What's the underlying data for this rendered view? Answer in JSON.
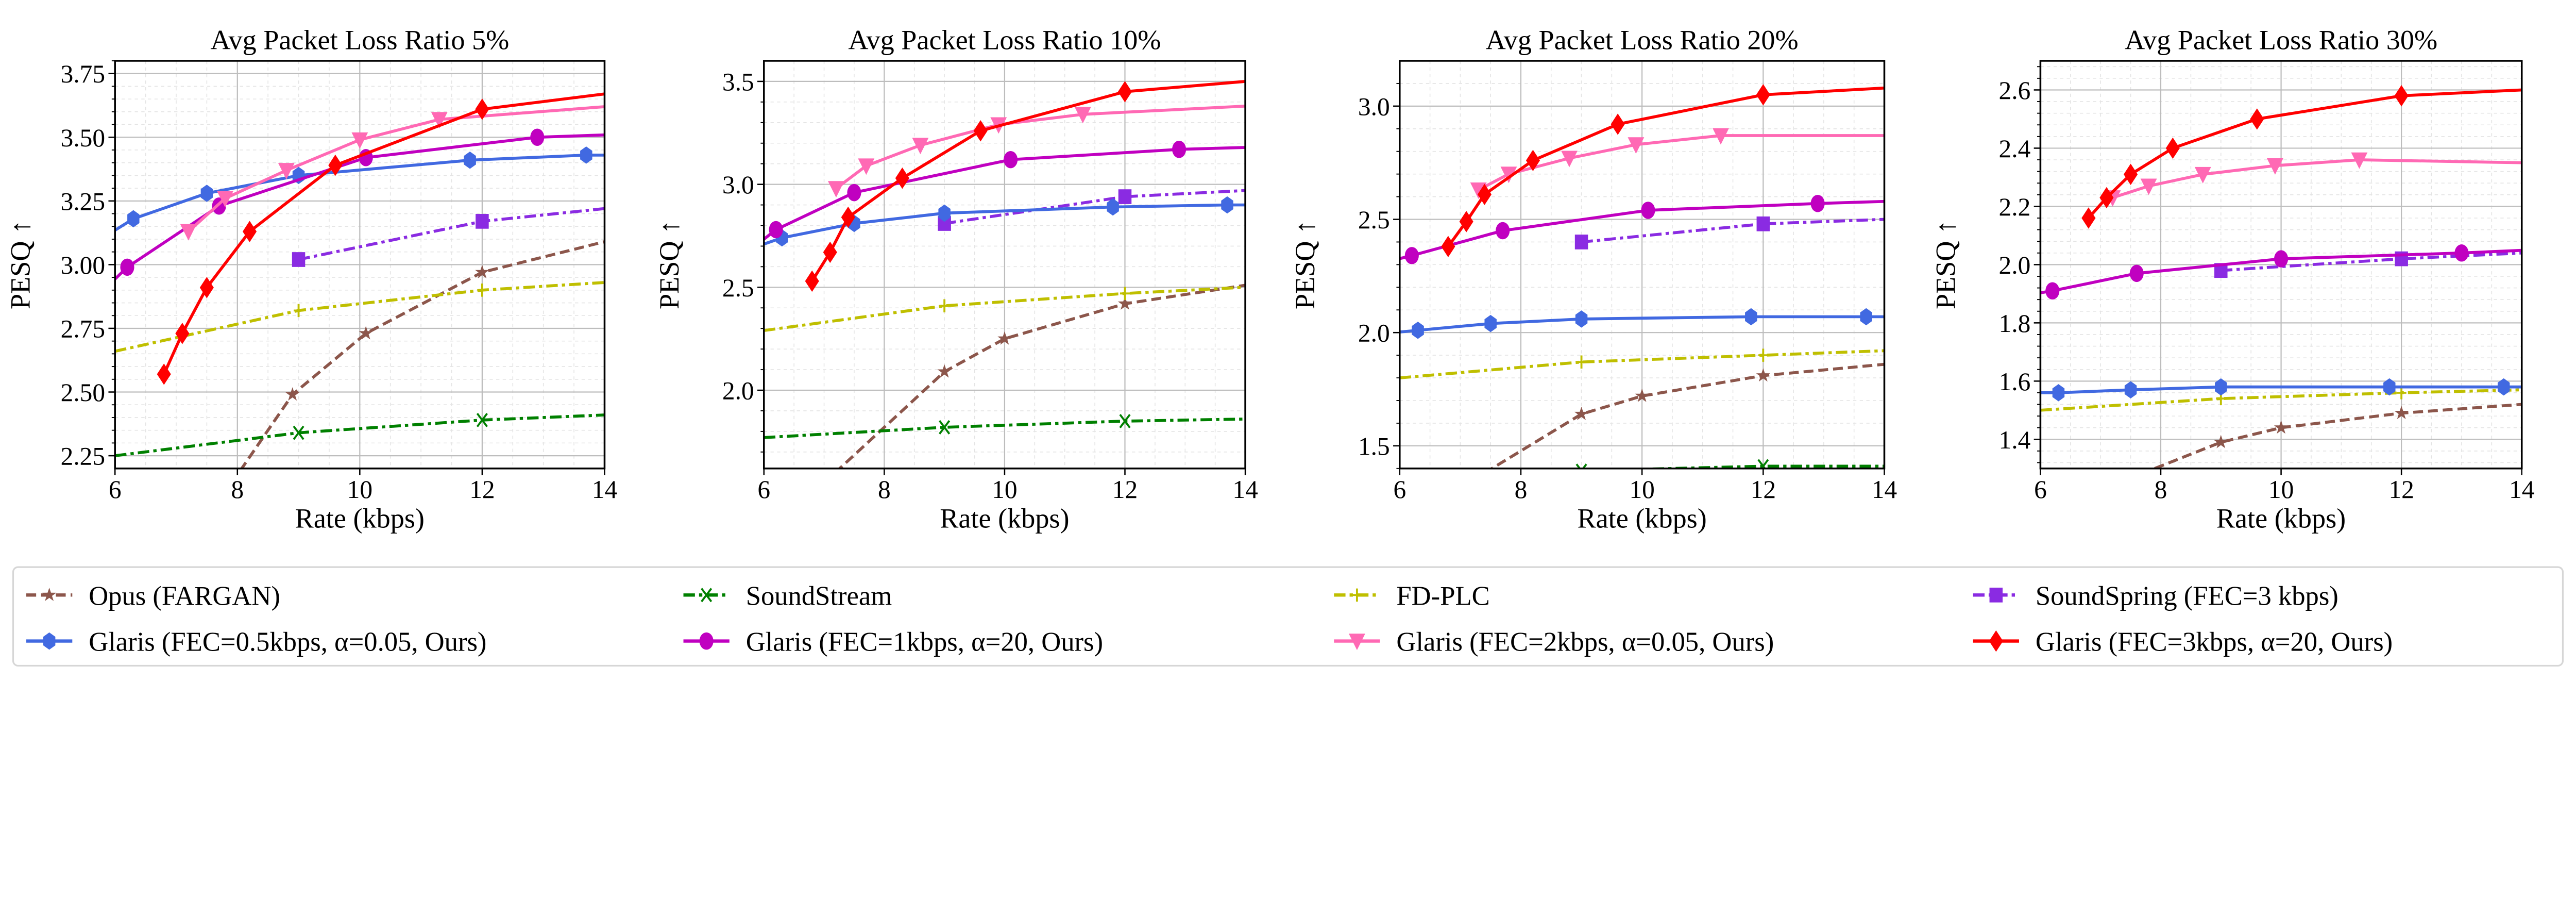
{
  "chart_data": [
    {
      "type": "line",
      "title": "Avg Packet Loss Ratio 5%",
      "xlabel": "Rate (kbps)",
      "ylabel": "PESQ ↑",
      "xlim": [
        6,
        14
      ],
      "ylim": [
        2.2,
        3.8
      ],
      "xticks": [
        6,
        8,
        10,
        12,
        14
      ],
      "yticks": [
        2.25,
        2.5,
        2.75,
        3.0,
        3.25,
        3.5,
        3.75
      ],
      "ytick_decimals": 2,
      "grid": true,
      "series": [
        {
          "key": "opus",
          "x": [
            7.5,
            8.9,
            10.1,
            12,
            14
          ],
          "y": [
            2.0,
            2.49,
            2.73,
            2.97,
            3.09
          ]
        },
        {
          "key": "soundstream",
          "x": [
            6,
            9,
            12,
            14
          ],
          "y": [
            2.25,
            2.34,
            2.39,
            2.41
          ]
        },
        {
          "key": "fdplc",
          "x": [
            6,
            9,
            12,
            14
          ],
          "y": [
            2.66,
            2.82,
            2.9,
            2.93
          ]
        },
        {
          "key": "soundspring",
          "x": [
            9,
            12,
            14
          ],
          "y": [
            3.02,
            3.17,
            3.22
          ]
        },
        {
          "key": "glaris05",
          "x": [
            5.9,
            6.3,
            7.5,
            9,
            11.8,
            13.7,
            14.1
          ],
          "y": [
            3.12,
            3.18,
            3.28,
            3.35,
            3.41,
            3.43,
            3.43
          ]
        },
        {
          "key": "glaris1",
          "x": [
            5.9,
            6.2,
            7.7,
            10.1,
            12.9,
            14.1
          ],
          "y": [
            2.92,
            2.99,
            3.23,
            3.42,
            3.5,
            3.51
          ]
        },
        {
          "key": "glaris2",
          "x": [
            7.2,
            7.8,
            8.8,
            10,
            11.3,
            14
          ],
          "y": [
            3.13,
            3.26,
            3.37,
            3.49,
            3.57,
            3.62
          ]
        },
        {
          "key": "glaris3",
          "x": [
            6.8,
            7.1,
            7.5,
            8.2,
            9.6,
            12,
            14
          ],
          "y": [
            2.57,
            2.73,
            2.91,
            3.13,
            3.39,
            3.61,
            3.67
          ]
        }
      ]
    },
    {
      "type": "line",
      "title": "Avg Packet Loss Ratio 10%",
      "xlabel": "Rate (kbps)",
      "ylabel": "PESQ ↑",
      "xlim": [
        6,
        14
      ],
      "ylim": [
        1.62,
        3.6
      ],
      "xticks": [
        6,
        8,
        10,
        12,
        14
      ],
      "yticks": [
        2.0,
        2.5,
        3.0,
        3.5
      ],
      "ytick_decimals": 1,
      "grid": true,
      "series": [
        {
          "key": "opus",
          "x": [
            7.0,
            9,
            10,
            12,
            14
          ],
          "y": [
            1.55,
            2.09,
            2.25,
            2.42,
            2.51
          ]
        },
        {
          "key": "soundstream",
          "x": [
            6,
            9,
            12,
            14
          ],
          "y": [
            1.77,
            1.82,
            1.85,
            1.86
          ]
        },
        {
          "key": "fdplc",
          "x": [
            6,
            9,
            12,
            14
          ],
          "y": [
            2.29,
            2.41,
            2.47,
            2.5
          ]
        },
        {
          "key": "soundspring",
          "x": [
            9,
            12,
            14
          ],
          "y": [
            2.81,
            2.94,
            2.97
          ]
        },
        {
          "key": "glaris05",
          "x": [
            5.9,
            6.3,
            7.5,
            9,
            11.8,
            13.7,
            14.1
          ],
          "y": [
            2.7,
            2.74,
            2.81,
            2.86,
            2.89,
            2.9,
            2.9
          ]
        },
        {
          "key": "glaris1",
          "x": [
            5.9,
            6.2,
            7.5,
            10.1,
            12.9,
            14.1
          ],
          "y": [
            2.71,
            2.78,
            2.96,
            3.12,
            3.17,
            3.18
          ]
        },
        {
          "key": "glaris2",
          "x": [
            7.2,
            7.7,
            8.6,
            9.9,
            11.3,
            14
          ],
          "y": [
            2.98,
            3.09,
            3.19,
            3.29,
            3.34,
            3.38
          ]
        },
        {
          "key": "glaris3",
          "x": [
            6.8,
            7.1,
            7.4,
            8.3,
            9.6,
            12,
            14
          ],
          "y": [
            2.53,
            2.67,
            2.84,
            3.03,
            3.26,
            3.45,
            3.5
          ]
        }
      ]
    },
    {
      "type": "line",
      "title": "Avg Packet Loss Ratio 20%",
      "xlabel": "Rate (kbps)",
      "ylabel": "PESQ ↑",
      "xlim": [
        6,
        14
      ],
      "ylim": [
        1.4,
        3.2
      ],
      "xticks": [
        6,
        8,
        10,
        12,
        14
      ],
      "yticks": [
        1.5,
        2.0,
        2.5,
        3.0
      ],
      "ytick_decimals": 1,
      "grid": true,
      "series": [
        {
          "key": "opus",
          "x": [
            7.4,
            9,
            10,
            12,
            14
          ],
          "y": [
            1.38,
            1.64,
            1.72,
            1.81,
            1.86
          ]
        },
        {
          "key": "soundstream",
          "x": [
            6,
            9,
            12,
            14
          ],
          "y": [
            1.37,
            1.39,
            1.41,
            1.41
          ]
        },
        {
          "key": "fdplc",
          "x": [
            6,
            9,
            12,
            14
          ],
          "y": [
            1.8,
            1.87,
            1.9,
            1.92
          ]
        },
        {
          "key": "soundspring",
          "x": [
            9,
            12,
            14
          ],
          "y": [
            2.4,
            2.48,
            2.5
          ]
        },
        {
          "key": "glaris05",
          "x": [
            5.9,
            6.3,
            7.5,
            9,
            11.8,
            13.7,
            14.1
          ],
          "y": [
            2.0,
            2.01,
            2.04,
            2.06,
            2.07,
            2.07,
            2.07
          ]
        },
        {
          "key": "glaris1",
          "x": [
            5.9,
            6.2,
            7.7,
            10.1,
            12.9,
            14.1
          ],
          "y": [
            2.32,
            2.34,
            2.45,
            2.54,
            2.57,
            2.58
          ]
        },
        {
          "key": "glaris2",
          "x": [
            7.3,
            7.8,
            8.8,
            9.9,
            11.3,
            14
          ],
          "y": [
            2.63,
            2.7,
            2.77,
            2.83,
            2.87,
            2.87
          ]
        },
        {
          "key": "glaris3",
          "x": [
            6.8,
            7.1,
            7.4,
            8.2,
            9.6,
            12,
            14
          ],
          "y": [
            2.38,
            2.49,
            2.61,
            2.76,
            2.92,
            3.05,
            3.08
          ]
        }
      ]
    },
    {
      "type": "line",
      "title": "Avg Packet Loss Ratio 30%",
      "xlabel": "Rate (kbps)",
      "ylabel": "PESQ ↑",
      "xlim": [
        6,
        14
      ],
      "ylim": [
        1.3,
        2.7
      ],
      "xticks": [
        6,
        8,
        10,
        12,
        14
      ],
      "yticks": [
        1.4,
        1.6,
        1.8,
        2.0,
        2.2,
        2.4,
        2.6
      ],
      "ytick_decimals": 1,
      "grid": true,
      "series": [
        {
          "key": "opus",
          "x": [
            7.9,
            9,
            10,
            12,
            14
          ],
          "y": [
            1.3,
            1.39,
            1.44,
            1.49,
            1.52
          ]
        },
        {
          "key": "fdplc",
          "x": [
            6,
            9,
            12,
            14
          ],
          "y": [
            1.5,
            1.54,
            1.56,
            1.57
          ]
        },
        {
          "key": "soundspring",
          "x": [
            9,
            12,
            14
          ],
          "y": [
            1.98,
            2.02,
            2.04
          ]
        },
        {
          "key": "glaris05",
          "x": [
            5.9,
            6.3,
            7.5,
            9,
            11.8,
            13.7,
            14.1
          ],
          "y": [
            1.56,
            1.56,
            1.57,
            1.58,
            1.58,
            1.58,
            1.58
          ]
        },
        {
          "key": "glaris1",
          "x": [
            5.9,
            6.2,
            7.6,
            10,
            13,
            14.1
          ],
          "y": [
            1.9,
            1.91,
            1.97,
            2.02,
            2.04,
            2.05
          ]
        },
        {
          "key": "glaris2",
          "x": [
            7.2,
            7.8,
            8.7,
            9.9,
            11.3,
            14
          ],
          "y": [
            2.23,
            2.27,
            2.31,
            2.34,
            2.36,
            2.35
          ]
        },
        {
          "key": "glaris3",
          "x": [
            6.8,
            7.1,
            7.5,
            8.2,
            9.6,
            12,
            14
          ],
          "y": [
            2.16,
            2.23,
            2.31,
            2.4,
            2.5,
            2.58,
            2.6
          ]
        }
      ]
    }
  ],
  "legend": {
    "placement": "bottom",
    "entries": [
      {
        "key": "opus",
        "label": "Opus (FARGAN)",
        "color": "#8c564b",
        "dash": "dashed",
        "marker": "star"
      },
      {
        "key": "soundstream",
        "label": "SoundStream",
        "color": "#008000",
        "dash": "dashdot",
        "marker": "x"
      },
      {
        "key": "fdplc",
        "label": "FD-PLC",
        "color": "#bfbf00",
        "dash": "dashdot",
        "marker": "plus"
      },
      {
        "key": "soundspring",
        "label": "SoundSpring (FEC=3 kbps)",
        "color": "#8a2be2",
        "dash": "dashdot",
        "marker": "square"
      },
      {
        "key": "glaris05",
        "label": "Glaris (FEC=0.5kbps, α=0.05, Ours)",
        "color": "#4169e1",
        "dash": "solid",
        "marker": "hexagon"
      },
      {
        "key": "glaris1",
        "label": "Glaris (FEC=1kbps, α=20, Ours)",
        "color": "#c000c0",
        "dash": "solid",
        "marker": "circle"
      },
      {
        "key": "glaris2",
        "label": "Glaris (FEC=2kbps, α=0.05, Ours)",
        "color": "#ff69b4",
        "dash": "solid",
        "marker": "triangle-down"
      },
      {
        "key": "glaris3",
        "label": "Glaris (FEC=3kbps, α=20, Ours)",
        "color": "#ff0000",
        "dash": "solid",
        "marker": "diamond"
      }
    ]
  }
}
